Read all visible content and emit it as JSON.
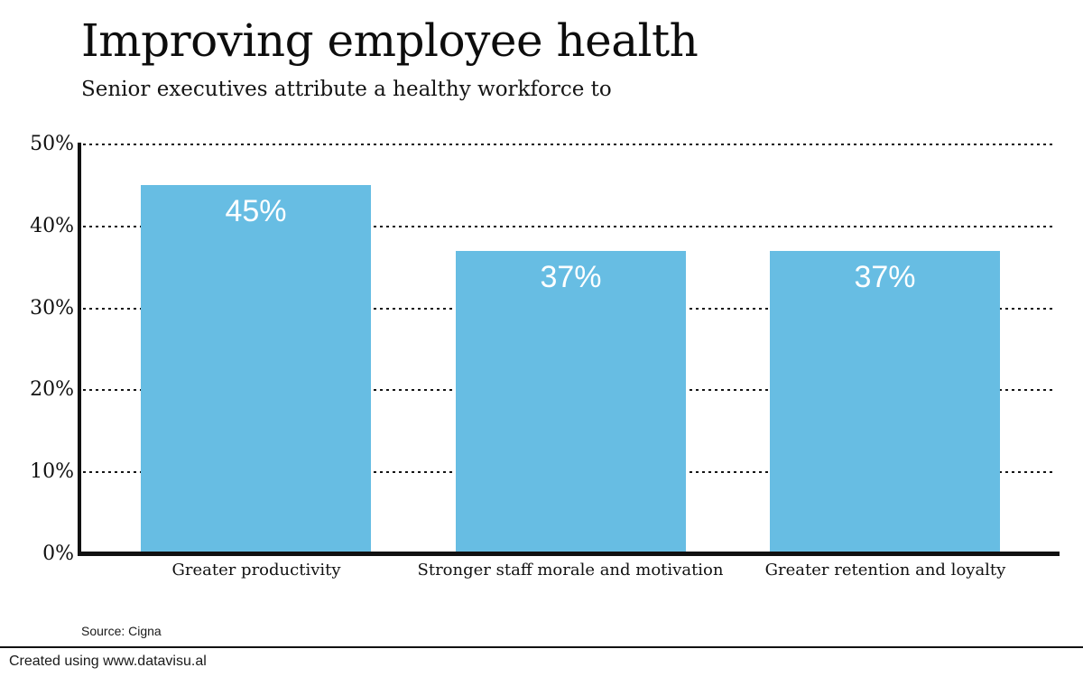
{
  "header": {
    "title": "Improving employee health",
    "subtitle": "Senior executives attribute a healthy workforce to"
  },
  "chart_data": {
    "type": "bar",
    "title": "Improving employee health",
    "subtitle": "Senior executives attribute a healthy workforce to",
    "categories": [
      "Greater productivity",
      "Stronger staff morale and motivation",
      "Greater retention and loyalty"
    ],
    "values": [
      45,
      37,
      37
    ],
    "value_labels": [
      "45%",
      "37%",
      "37%"
    ],
    "xlabel": "",
    "ylabel": "",
    "ylim": [
      0,
      50
    ],
    "yticks": [
      0,
      10,
      20,
      30,
      40,
      50
    ],
    "ytick_labels": [
      "0%",
      "10%",
      "20%",
      "30%",
      "40%",
      "50%"
    ],
    "grid": "horizontal dotted gridlines",
    "legend": "none",
    "bar_color": "#67bde3",
    "value_label_color": "#ffffff",
    "axis_color": "#111111"
  },
  "footer": {
    "source": "Source: Cigna",
    "credit": "Created using www.datavisu.al"
  }
}
